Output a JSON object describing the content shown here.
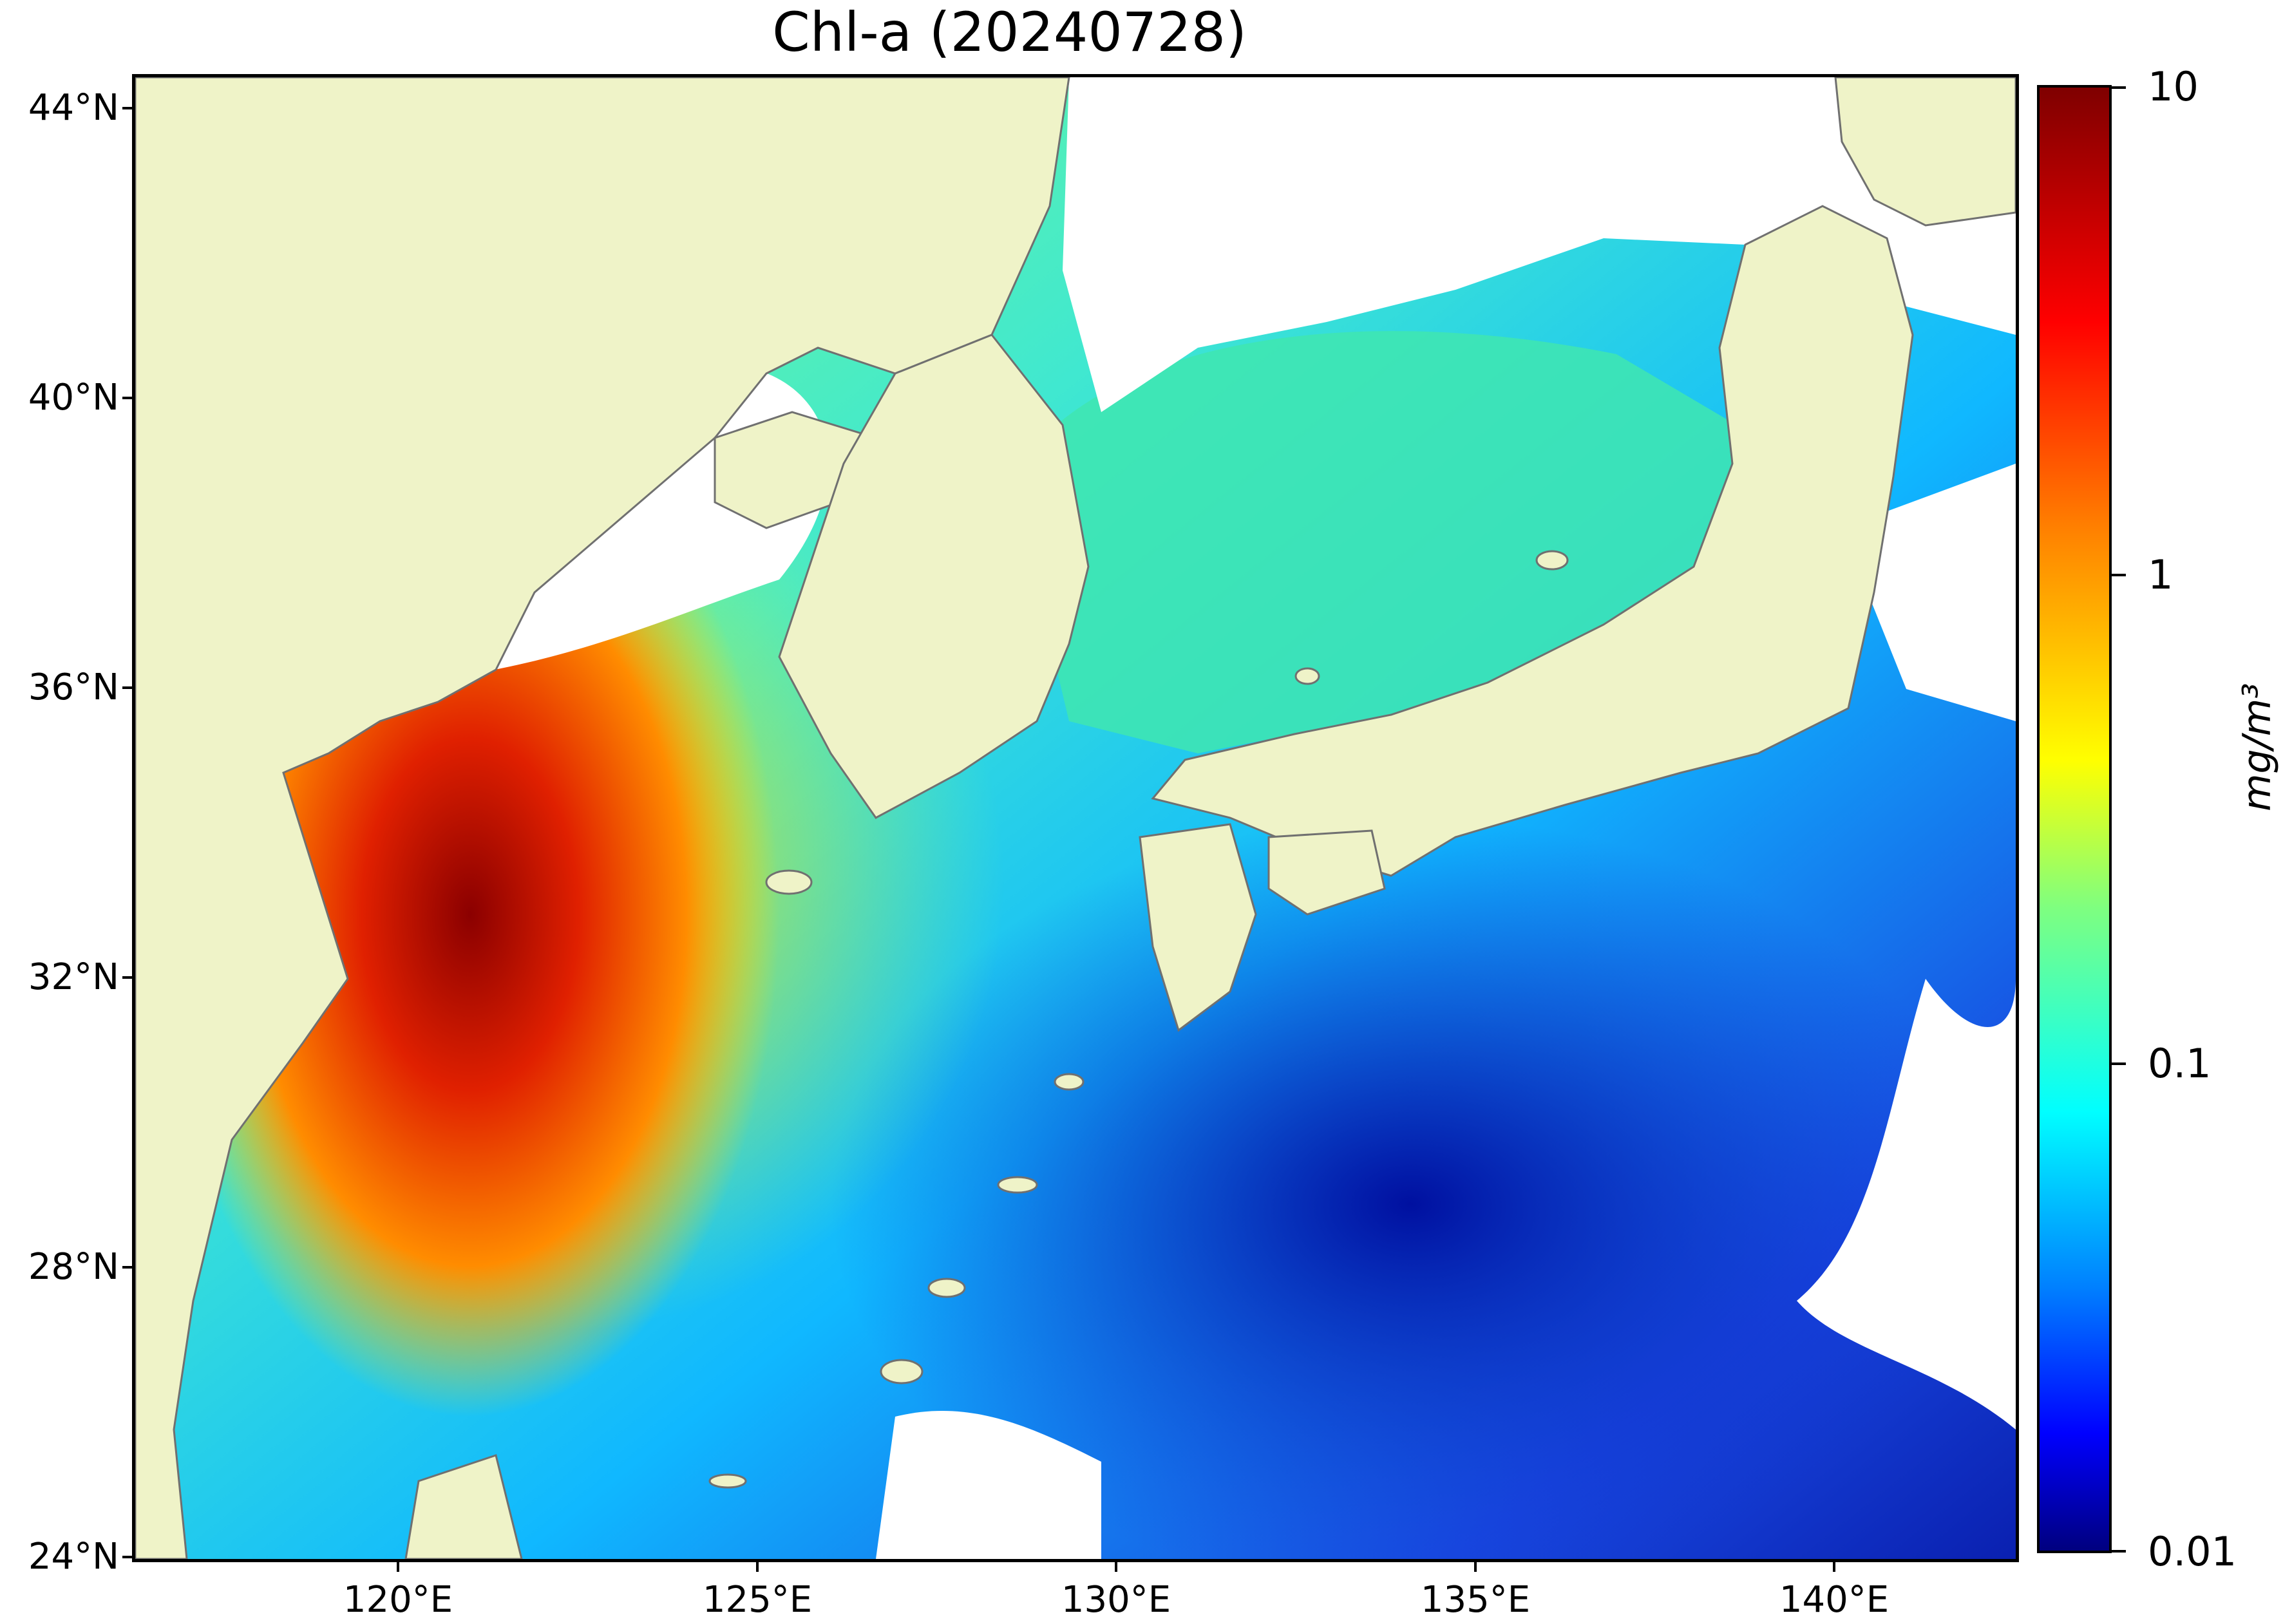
{
  "title": "Chl-a (20240728)",
  "map": {
    "lat_labels": [
      "44°N",
      "40°N",
      "36°N",
      "32°N",
      "28°N",
      "24°N"
    ],
    "lon_labels": [
      "120°E",
      "125°E",
      "130°E",
      "135°E",
      "140°E"
    ],
    "colors": {
      "land": "#eff3c8",
      "no_data": "#ffffff",
      "coastline": "#707070"
    }
  },
  "colorbar": {
    "labels": [
      "10",
      "1",
      "0.1",
      "0.01"
    ],
    "unit": "mg/m³",
    "scale": "log",
    "colormap": "jet"
  }
}
